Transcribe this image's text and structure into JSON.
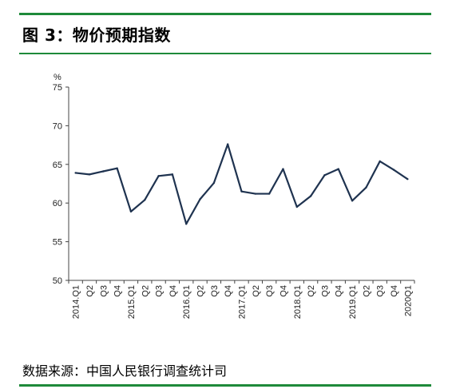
{
  "header": {
    "title": "图 3：物价预期指数"
  },
  "footer": {
    "source": "数据来源：中国人民银行调查统计司"
  },
  "colors": {
    "rule": "#1e8a3a",
    "line": "#1f3350",
    "axis": "#444444"
  },
  "chart_data": {
    "type": "line",
    "title": "",
    "ylabel": "%",
    "xlabel": "",
    "ylim": [
      50,
      75
    ],
    "yticks": [
      50,
      55,
      60,
      65,
      70,
      75
    ],
    "grid": false,
    "categories": [
      "2014.Q1",
      "Q2",
      "Q3",
      "Q4",
      "2015.Q1",
      "Q2",
      "Q3",
      "Q4",
      "2016.Q1",
      "Q2",
      "Q3",
      "Q4",
      "2017.Q1",
      "Q2",
      "Q3",
      "Q4",
      "2018.Q1",
      "Q2",
      "Q3",
      "Q4",
      "2019.Q1",
      "Q2",
      "Q3",
      "Q4",
      "2020Q1"
    ],
    "series": [
      {
        "values": [
          63.9,
          63.7,
          64.1,
          64.5,
          58.9,
          60.4,
          63.5,
          63.7,
          57.3,
          60.5,
          62.6,
          67.6,
          61.5,
          61.2,
          61.2,
          64.4,
          59.5,
          60.9,
          63.6,
          64.4,
          60.3,
          62.0,
          65.4,
          64.3,
          63.1
        ]
      }
    ]
  }
}
